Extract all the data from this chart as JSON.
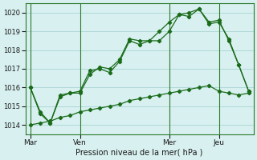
{
  "title": "",
  "xlabel": "Pression niveau de la mer( hPa )",
  "ylim": [
    1013.5,
    1020.5
  ],
  "yticks": [
    1014,
    1015,
    1016,
    1017,
    1018,
    1019,
    1020
  ],
  "bg_color": "#d8f0f0",
  "grid_color": "#b0d8d8",
  "line_color": "#1a6b1a",
  "day_labels": [
    "Mar",
    "Ven",
    "Mer",
    "Jeu"
  ],
  "day_positions": [
    0,
    5,
    14,
    19
  ],
  "line1": {
    "x": [
      0,
      1,
      2,
      3,
      4,
      5,
      6,
      7,
      8,
      9,
      10,
      11,
      12,
      13,
      14,
      15,
      16,
      17,
      18,
      19,
      20,
      21,
      22
    ],
    "y": [
      1016.0,
      1014.7,
      1014.1,
      1015.6,
      1015.7,
      1015.7,
      1016.7,
      1017.1,
      1017.0,
      1017.5,
      1018.6,
      1018.5,
      1018.5,
      1018.5,
      1019.0,
      1019.9,
      1019.8,
      1020.2,
      1019.4,
      1019.5,
      1018.6,
      1017.2,
      1015.8
    ]
  },
  "line2": {
    "x": [
      0,
      1,
      2,
      3,
      4,
      5,
      6,
      7,
      8,
      9,
      10,
      11,
      12,
      13,
      14,
      15,
      16,
      17,
      18,
      19,
      20,
      21,
      22
    ],
    "y": [
      1016.0,
      1014.6,
      1014.1,
      1015.5,
      1015.7,
      1015.8,
      1016.9,
      1017.0,
      1016.8,
      1017.4,
      1018.5,
      1018.3,
      1018.5,
      1019.0,
      1019.5,
      1019.9,
      1020.0,
      1020.2,
      1019.5,
      1019.6,
      1018.5,
      1017.2,
      1015.8
    ]
  },
  "line3": {
    "x": [
      0,
      1,
      2,
      3,
      4,
      5,
      6,
      7,
      8,
      9,
      10,
      11,
      12,
      13,
      14,
      15,
      16,
      17,
      18,
      19,
      20,
      21,
      22
    ],
    "y": [
      1014.0,
      1014.1,
      1014.2,
      1014.4,
      1014.5,
      1014.7,
      1014.8,
      1014.9,
      1015.0,
      1015.1,
      1015.3,
      1015.4,
      1015.5,
      1015.6,
      1015.7,
      1015.8,
      1015.9,
      1016.0,
      1016.1,
      1015.8,
      1015.7,
      1015.6,
      1015.7
    ]
  }
}
